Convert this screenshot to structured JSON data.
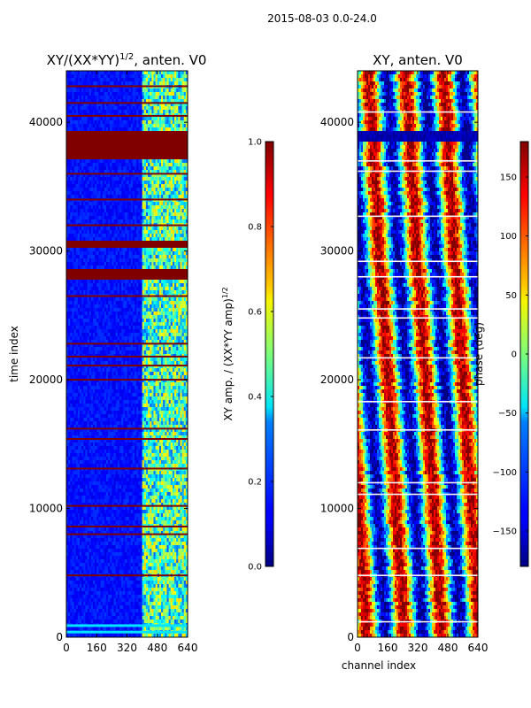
{
  "suptitle": "2015-08-03 0.0-24.0",
  "chart_data": [
    {
      "type": "heatmap",
      "title_main": "XY/(XX*YY)",
      "title_sup": "1/2",
      "title_rest": ", anten. V0",
      "ylabel": "time index",
      "xlabel": "",
      "xlim": [
        0,
        640
      ],
      "ylim": [
        0,
        44000
      ],
      "x_ticks": [
        "0",
        "160",
        "320",
        "480",
        "640"
      ],
      "x_tick_values": [
        0,
        160,
        320,
        480,
        640
      ],
      "y_ticks": [
        "0",
        "10000",
        "20000",
        "30000",
        "40000"
      ],
      "y_tick_values": [
        0,
        10000,
        20000,
        30000,
        40000
      ],
      "colorbar": {
        "label": "XY amp. / (XX*YY amp)",
        "label_sup": "1/2",
        "range": [
          0.0,
          1.0
        ],
        "ticks": [
          "0.0",
          "0.2",
          "0.4",
          "0.6",
          "0.8",
          "1.0"
        ],
        "tick_values": [
          0.0,
          0.2,
          0.4,
          0.6,
          0.8,
          1.0
        ],
        "colormap": "jet"
      },
      "saturated_time_bands": [
        [
          37200,
          39400
        ],
        [
          27800,
          28500
        ],
        [
          30200,
          30700
        ]
      ],
      "flagged_time_rows": [
        4800,
        8000,
        8600,
        10200,
        13100,
        15400,
        16200,
        20000,
        21100,
        21800,
        22800,
        26500,
        32000,
        34000,
        36000,
        40500,
        41500,
        42800
      ],
      "high_amplitude_channel_range": [
        400,
        640
      ],
      "background_level": 0.1
    },
    {
      "type": "heatmap",
      "title": "XY, anten. V0",
      "xlabel": "channel index",
      "ylabel": "",
      "xlim": [
        0,
        640
      ],
      "ylim": [
        0,
        44000
      ],
      "x_ticks": [
        "0",
        "160",
        "320",
        "480",
        "640"
      ],
      "x_tick_values": [
        0,
        160,
        320,
        480,
        640
      ],
      "y_ticks": [
        "0",
        "10000",
        "20000",
        "30000",
        "40000"
      ],
      "y_tick_values": [
        0,
        10000,
        20000,
        30000,
        40000
      ],
      "colorbar": {
        "label": "phase (deg)",
        "range": [
          -180,
          180
        ],
        "ticks": [
          "150",
          "100",
          "50",
          "0",
          "−50",
          "−100",
          "−150"
        ],
        "tick_values": [
          150,
          100,
          50,
          0,
          -50,
          -100,
          -150
        ],
        "colormap": "jet"
      },
      "phase_stripe_period_channels": 200,
      "low_phase_band": [
        38400,
        39400
      ],
      "white_gap_rows": [
        1200,
        4800,
        6900,
        11100,
        12000,
        16100,
        18300,
        21700,
        24800,
        25500,
        28000,
        29200,
        32700,
        36200,
        37000,
        40800
      ]
    }
  ]
}
